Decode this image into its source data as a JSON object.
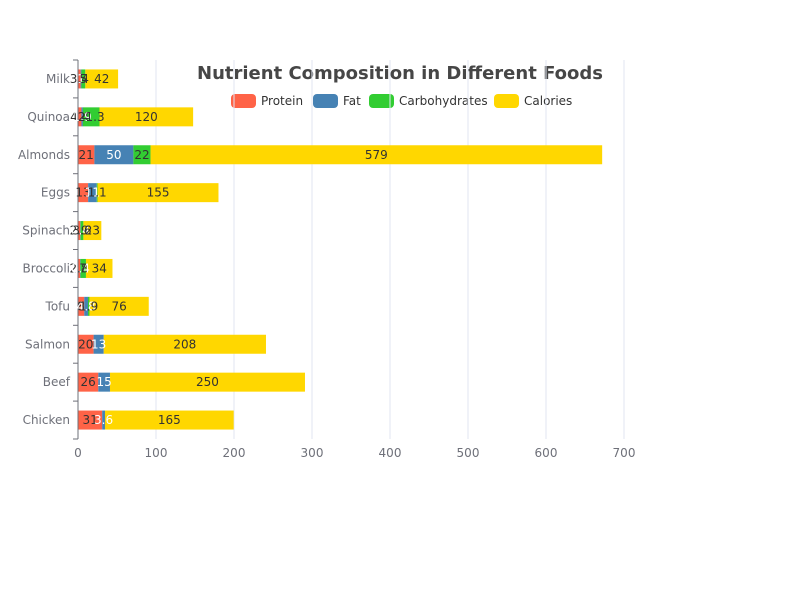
{
  "chart_data": {
    "type": "bar",
    "orientation": "horizontal",
    "stacked": true,
    "title": "Nutrient Composition in Different Foods",
    "categories": [
      "Chicken",
      "Beef",
      "Salmon",
      "Tofu",
      "Broccoli",
      "Spinach",
      "Eggs",
      "Almonds",
      "Quinoa",
      "Milk"
    ],
    "series": [
      {
        "name": "Protein",
        "color": "#ff6347",
        "values": [
          31,
          26,
          20,
          8,
          2.8,
          2.9,
          13,
          21,
          4.4,
          3.4
        ]
      },
      {
        "name": "Fat",
        "color": "#4682b4",
        "values": [
          3.6,
          15,
          13,
          4.8,
          0.4,
          0.4,
          11,
          50,
          1.9,
          1
        ]
      },
      {
        "name": "Carbohydrates",
        "color": "#32cd32",
        "values": [
          0,
          0,
          0,
          1.9,
          7,
          3.6,
          1.1,
          22,
          21.3,
          5
        ]
      },
      {
        "name": "Calories",
        "color": "#ffd700",
        "values": [
          165,
          250,
          208,
          76,
          34,
          23,
          155,
          579,
          120,
          42
        ]
      }
    ],
    "xlim": [
      0,
      700
    ],
    "x_ticks": [
      0,
      100,
      200,
      300,
      400,
      500,
      600,
      700
    ],
    "xlabel": "",
    "ylabel": "",
    "grid": true,
    "legend_position": "top"
  }
}
